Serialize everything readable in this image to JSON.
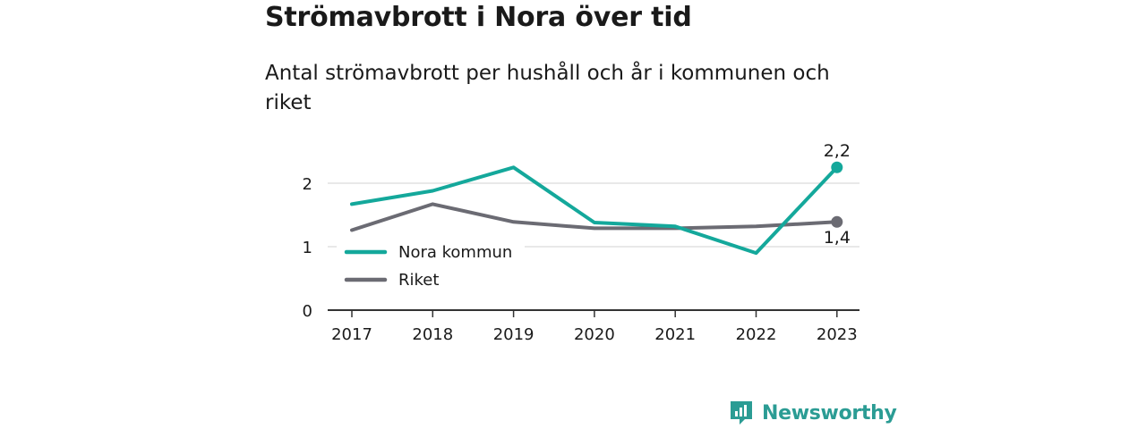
{
  "title": "Strömavbrott i Nora över tid",
  "subtitle": "Antal strömavbrott per hushåll och år i kommunen och riket",
  "brand": {
    "name": "Newsworthy",
    "icon": "newsworthy-logo-icon"
  },
  "colors": {
    "accent": "#14a89b",
    "secondary": "#6b6b73",
    "grid": "#d9d9d9",
    "axis": "#333333"
  },
  "chart_data": {
    "type": "line",
    "x": [
      "2017",
      "2018",
      "2019",
      "2020",
      "2021",
      "2022",
      "2023"
    ],
    "ylim": [
      0,
      2.5
    ],
    "y_ticks": [
      "0",
      "1",
      "2"
    ],
    "grid": true,
    "legend_position": "bottom-left",
    "series": [
      {
        "name": "Nora kommun",
        "color": "#14a89b",
        "values": [
          1.67,
          1.88,
          2.25,
          1.38,
          1.32,
          0.9,
          2.25
        ],
        "end_label": "2,2"
      },
      {
        "name": "Riket",
        "color": "#6b6b73",
        "values": [
          1.26,
          1.67,
          1.39,
          1.29,
          1.29,
          1.32,
          1.39
        ],
        "end_label": "1,4"
      }
    ]
  }
}
